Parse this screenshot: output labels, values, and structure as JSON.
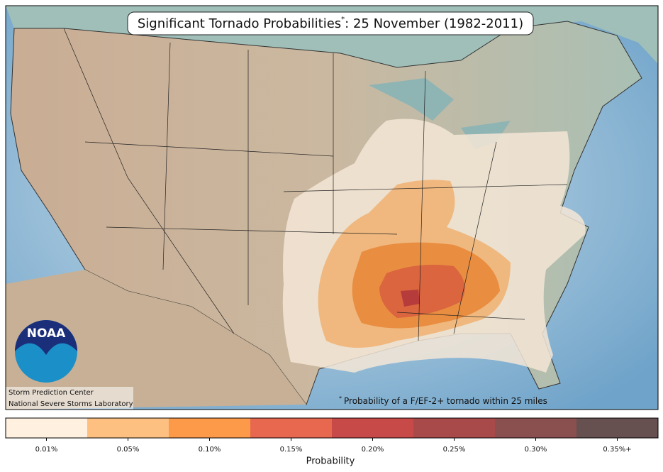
{
  "header": {
    "title": "Significant Tornado Probabilities",
    "title_mark": "*",
    "title_rest": ": 25 November (1982-2011)"
  },
  "footnote": {
    "mark": "*",
    "text": "Probability of a F/EF-2+ tornado within 25 miles"
  },
  "logo": {
    "text": "NOAA"
  },
  "credits": [
    "Storm Prediction Center",
    "National Severe Storms Laboratory"
  ],
  "legend": {
    "title": "Probability",
    "items": [
      {
        "label": "0.01%",
        "color": "#fff0e0"
      },
      {
        "label": "0.05%",
        "color": "#fdc080"
      },
      {
        "label": "0.10%",
        "color": "#fd9a4a"
      },
      {
        "label": "0.15%",
        "color": "#e8674f"
      },
      {
        "label": "0.20%",
        "color": "#c84a48"
      },
      {
        "label": "0.25%",
        "color": "#a84a4a"
      },
      {
        "label": "0.30%",
        "color": "#8a5050"
      },
      {
        "label": "0.35%+",
        "color": "#665050"
      }
    ]
  }
}
